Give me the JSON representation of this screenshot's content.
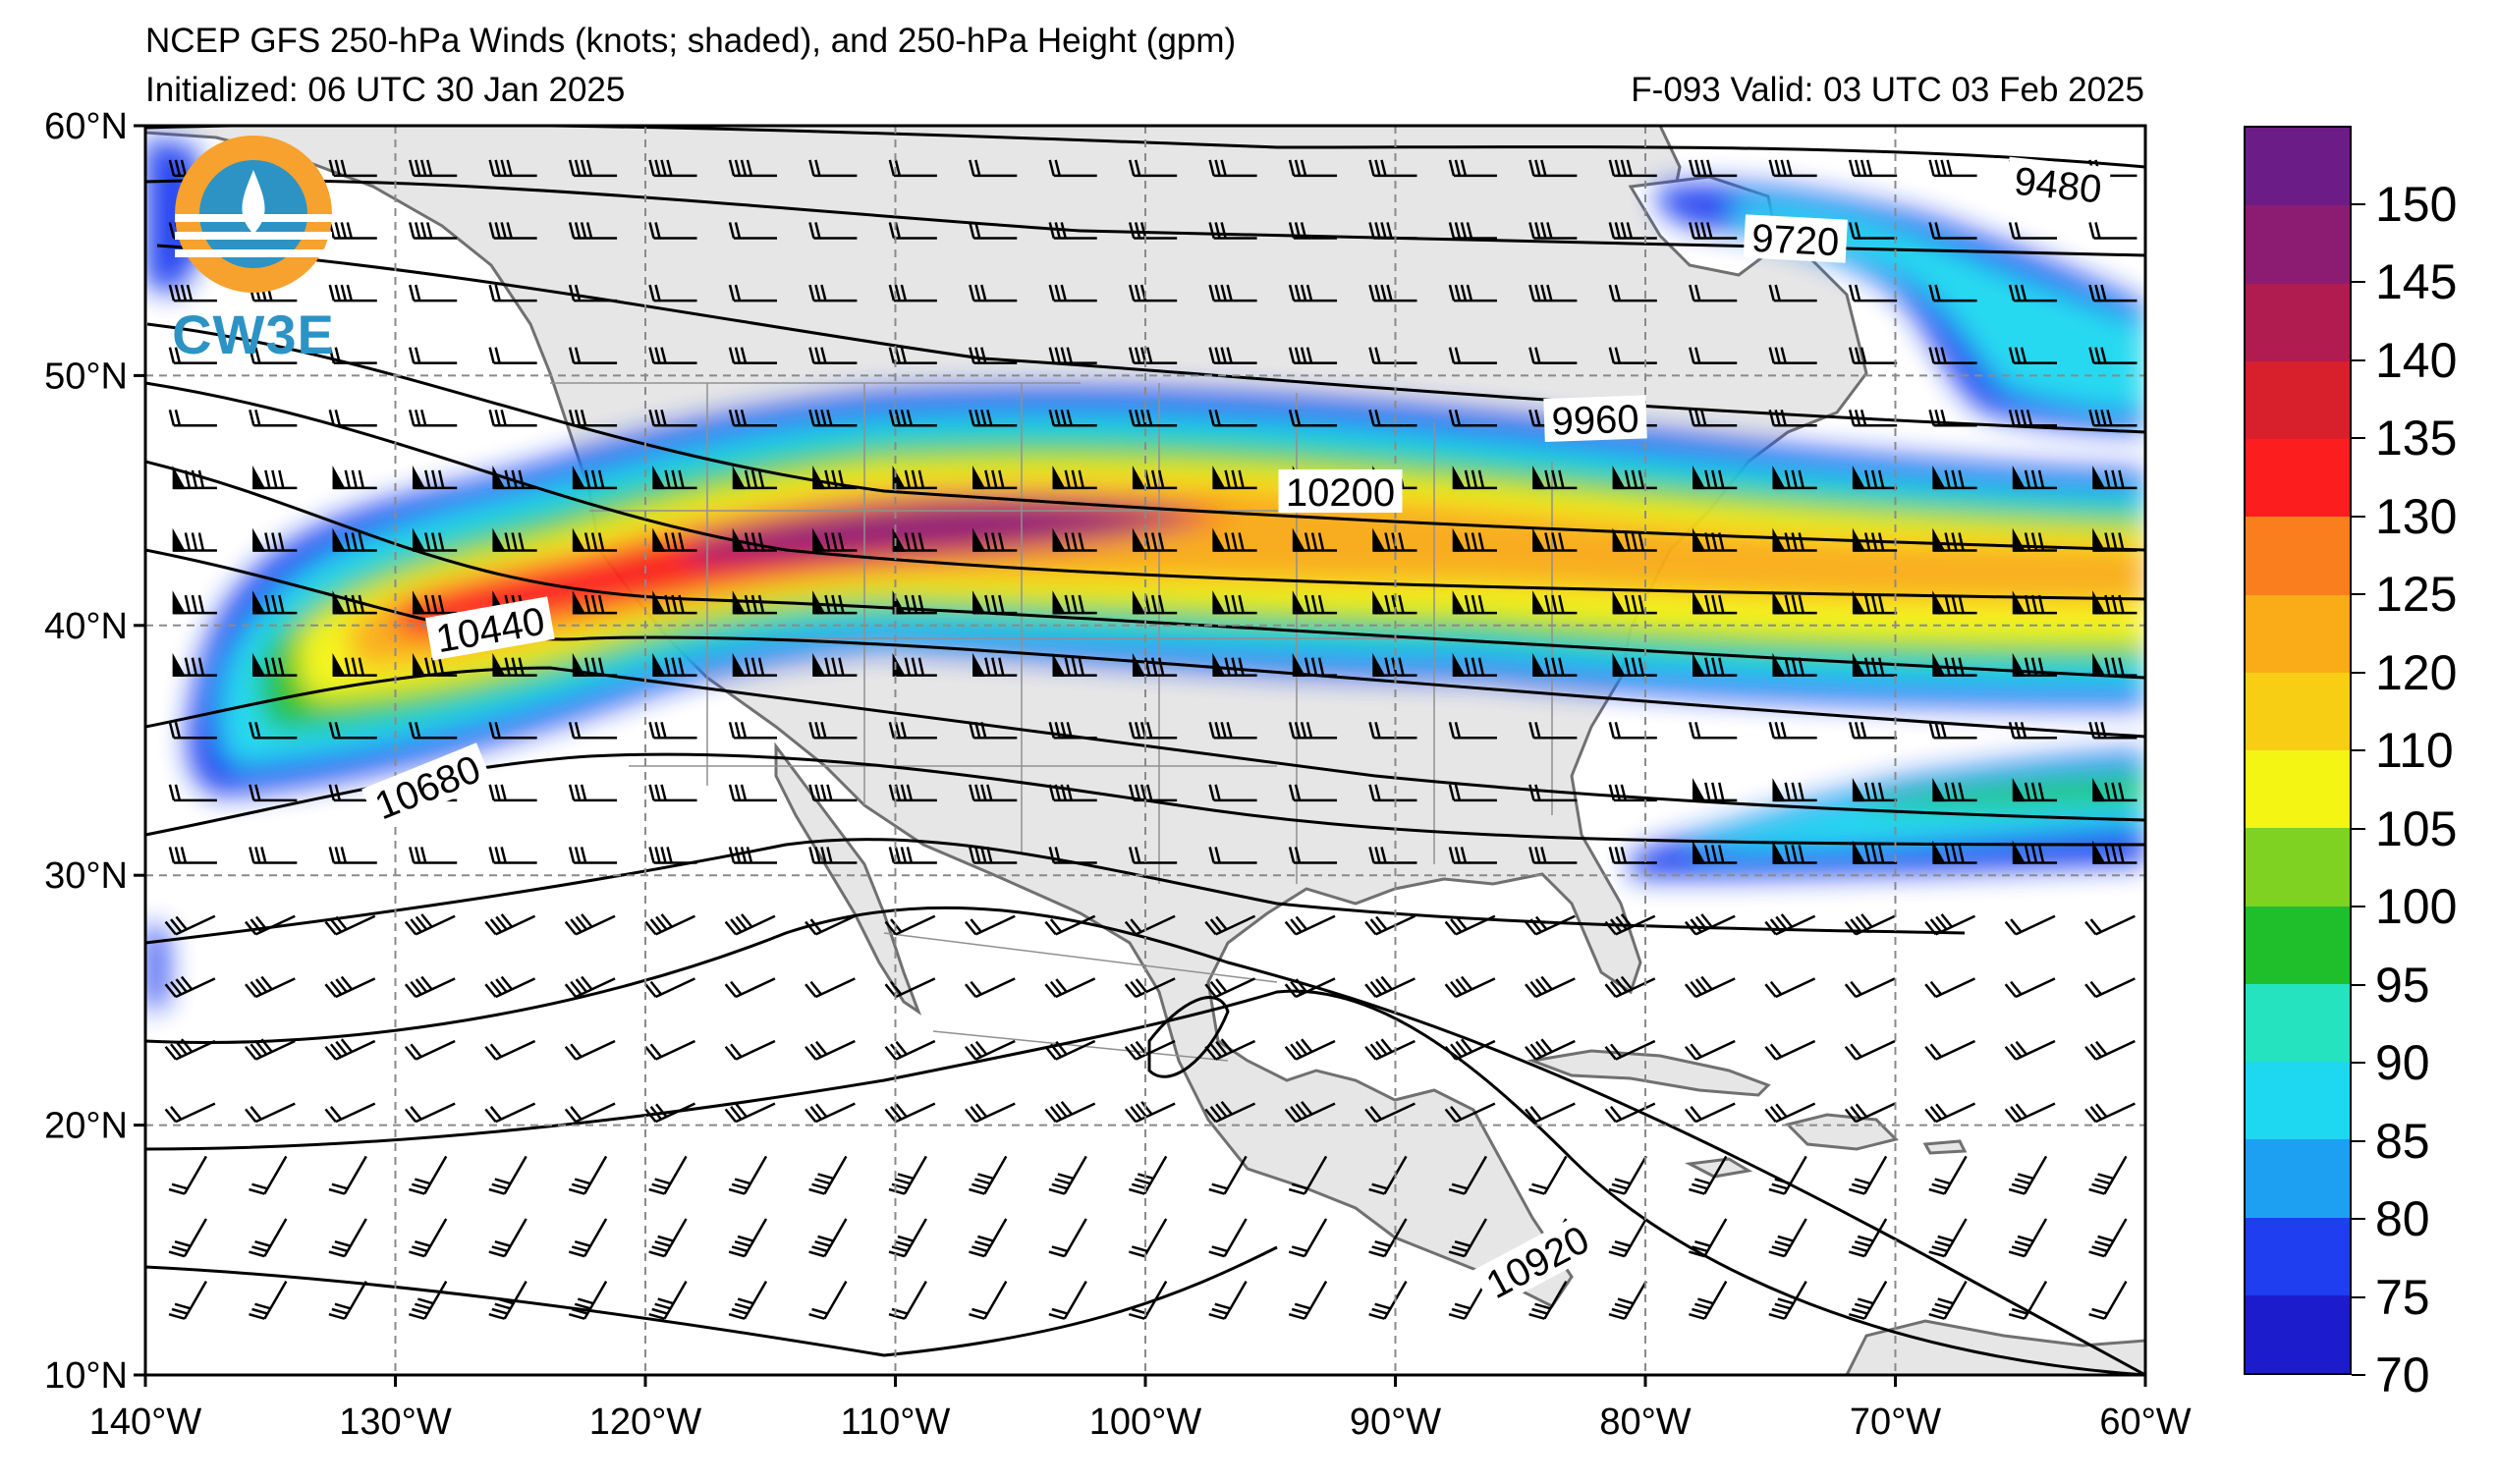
{
  "title": {
    "line1": "NCEP GFS 250-hPa Winds (knots; shaded), and 250-hPa Height (gpm)",
    "line2": "Initialized: 06 UTC 30 Jan 2025",
    "valid": "F-093  Valid: 03 UTC 03 Feb 2025"
  },
  "logo": {
    "text": "CW3E",
    "icon": "cw3e-logo-icon"
  },
  "map": {
    "lon_ticks": [
      "140°W",
      "130°W",
      "120°W",
      "110°W",
      "100°W",
      "90°W",
      "80°W",
      "70°W",
      "60°W"
    ],
    "lat_ticks": [
      "10°N",
      "20°N",
      "30°N",
      "40°N",
      "50°N",
      "60°N"
    ],
    "lon_range": [
      -140,
      -60
    ],
    "lat_range": [
      10,
      60
    ],
    "contour_labels": [
      {
        "text": "9480",
        "lon": -63.5,
        "lat": 57.6,
        "angle": 6
      },
      {
        "text": "9720",
        "lon": -74,
        "lat": 55.4,
        "angle": 3
      },
      {
        "text": "9960",
        "lon": -82,
        "lat": 48.2,
        "angle": -2
      },
      {
        "text": "10200",
        "lon": -92.2,
        "lat": 45.3,
        "angle": 0
      },
      {
        "text": "10440",
        "lon": -126.2,
        "lat": 39.8,
        "angle": -10
      },
      {
        "text": "10680",
        "lon": -128.7,
        "lat": 33.5,
        "angle": -22
      },
      {
        "text": "10920",
        "lon": -84.3,
        "lat": 14.5,
        "angle": -28
      }
    ],
    "colors": {
      "land": "#e6e6e6",
      "ocean": "#ffffff",
      "coast": "#707070",
      "grid": "#8a8a8a"
    }
  },
  "colorbar": {
    "levels": [
      "70",
      "75",
      "80",
      "85",
      "90",
      "95",
      "100",
      "105",
      "110",
      "120",
      "125",
      "130",
      "135",
      "140",
      "145",
      "150"
    ],
    "colors": [
      "#1c1ccc",
      "#1f3ef0",
      "#1ea0f2",
      "#1dd8f0",
      "#26e3c0",
      "#1ebf2a",
      "#7fd122",
      "#f5f514",
      "#f8ce14",
      "#f9ab18",
      "#fb7e1e",
      "#fc1e1e",
      "#d8202d",
      "#b01c50",
      "#8c1c72",
      "#6c1c86"
    ]
  }
}
